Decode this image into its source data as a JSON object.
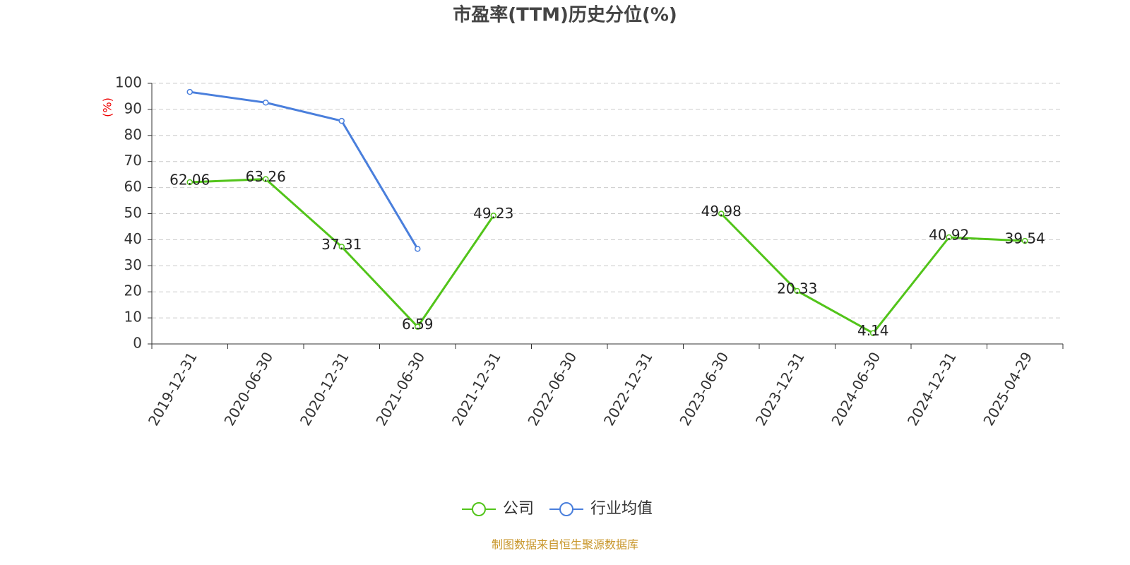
{
  "chart_data": {
    "type": "line",
    "title": "市盈率(TTM)历史分位(%)",
    "y_axis_label": "(%)",
    "categories": [
      "2019-12-31",
      "2020-06-30",
      "2020-12-31",
      "2021-06-30",
      "2021-12-31",
      "2022-06-30",
      "2022-12-31",
      "2023-06-30",
      "2023-12-31",
      "2024-06-30",
      "2024-12-31",
      "2025-04-29"
    ],
    "series": [
      {
        "name": "公司",
        "color": "#52c41a",
        "values": [
          62.06,
          63.26,
          37.31,
          6.59,
          49.23,
          null,
          null,
          49.98,
          20.33,
          4.14,
          40.92,
          39.54
        ],
        "show_labels": true
      },
      {
        "name": "行业均值",
        "color": "#4a7fdc",
        "values": [
          96.7,
          92.6,
          85.6,
          36.5,
          null,
          null,
          null,
          null,
          null,
          null,
          null,
          null
        ],
        "show_labels": false
      }
    ],
    "ylim": [
      0,
      100
    ],
    "yticks": [
      0,
      10,
      20,
      30,
      40,
      50,
      60,
      70,
      80,
      90,
      100
    ],
    "grid": true,
    "legend": "bottom",
    "source": "制图数据来自恒生聚源数据库"
  }
}
